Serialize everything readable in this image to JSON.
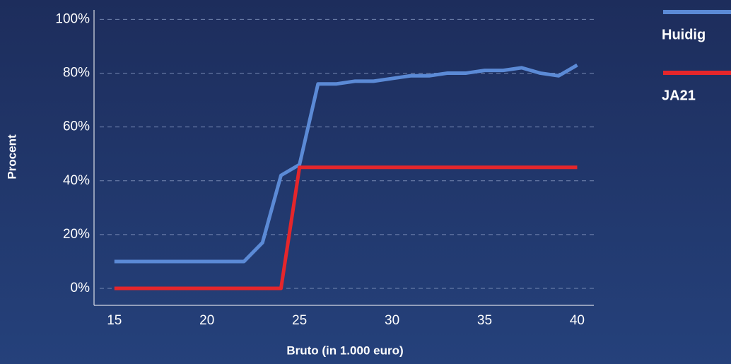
{
  "chart_data": {
    "type": "line",
    "x": [
      15,
      16,
      17,
      18,
      19,
      20,
      21,
      22,
      23,
      24,
      25,
      26,
      27,
      28,
      29,
      30,
      31,
      32,
      33,
      34,
      35,
      36,
      37,
      38,
      39,
      40
    ],
    "series": [
      {
        "name": "Huidig",
        "color": "#5b8ad6",
        "values": [
          10,
          10,
          10,
          10,
          10,
          10,
          10,
          10,
          17,
          42,
          46,
          76,
          76,
          77,
          77,
          78,
          79,
          79,
          80,
          80,
          81,
          81,
          82,
          80,
          79,
          83
        ]
      },
      {
        "name": "JA21",
        "color": "#e5262b",
        "values": [
          0,
          0,
          0,
          0,
          0,
          0,
          0,
          0,
          0,
          0,
          45,
          45,
          45,
          45,
          45,
          45,
          45,
          45,
          45,
          45,
          45,
          45,
          45,
          45,
          45,
          45
        ]
      }
    ],
    "xlabel": "Bruto (in 1.000 euro)",
    "ylabel": "Procent",
    "xlim": [
      13.9,
      40.9
    ],
    "ylim": [
      -6.3,
      103.5
    ],
    "xticks": [
      15,
      20,
      25,
      30,
      35,
      40
    ],
    "yticks": [
      {
        "value": 0,
        "label": "0%"
      },
      {
        "value": 20,
        "label": "20%"
      },
      {
        "value": 40,
        "label": "40%"
      },
      {
        "value": 60,
        "label": "60%"
      },
      {
        "value": 80,
        "label": "80%"
      },
      {
        "value": 100,
        "label": "100%"
      }
    ],
    "grid": true,
    "legend": "right"
  }
}
